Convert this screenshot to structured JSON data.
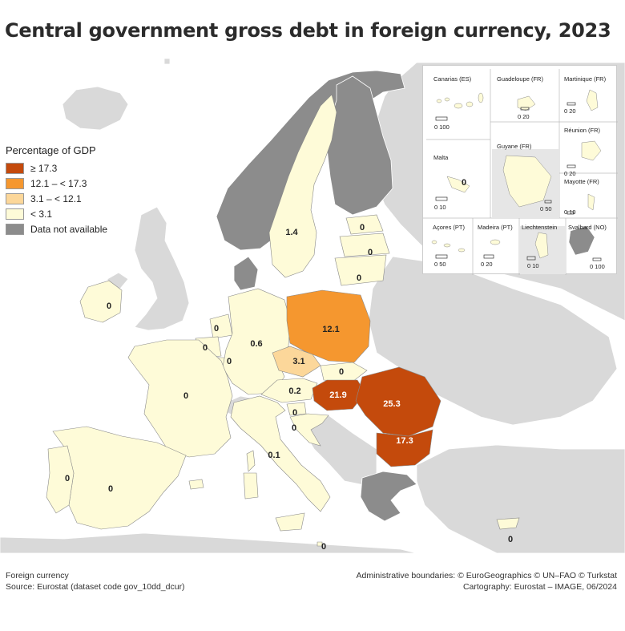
{
  "title": "Central government gross debt in foreign currency, 2023",
  "legend": {
    "title": "Percentage of GDP",
    "items": [
      {
        "label": "≥ 17.3",
        "color": "#c44a0c"
      },
      {
        "label": "12.1 – < 17.3",
        "color": "#f5972f"
      },
      {
        "label": "3.1 – < 12.1",
        "color": "#fcd79a"
      },
      {
        "label": "< 3.1",
        "color": "#fefbd8"
      },
      {
        "label": "Data not available",
        "color": "#8c8c8c"
      }
    ]
  },
  "map_values": {
    "sweden": "1.4",
    "estonia": "0",
    "latvia": "0",
    "lithuania": "0",
    "ireland": "0",
    "netherlands": "0",
    "belgium": "0",
    "luxembourg": "0",
    "germany": "0.6",
    "poland": "12.1",
    "czechia": "3.1",
    "slovakia": "0",
    "austria": "0.2",
    "hungary": "21.9",
    "romania": "25.3",
    "bulgaria": "17.3",
    "slovenia": "0",
    "croatia": "0",
    "france": "0",
    "italy": "0.1",
    "spain": "0",
    "portugal": "0",
    "malta": "0",
    "cyprus": "0"
  },
  "insets": {
    "canarias": {
      "name": "Canarias (ES)",
      "scale": "0   100"
    },
    "guadeloupe": {
      "name": "Guadeloupe (FR)",
      "scale": "0  20"
    },
    "martinique": {
      "name": "Martinique (FR)",
      "scale": "0  20"
    },
    "reunion": {
      "name": "Réunion (FR)",
      "scale": "0  20"
    },
    "malta": {
      "name": "Malta",
      "scale": "0   10",
      "value": "0"
    },
    "guyane": {
      "name": "Guyane (FR)",
      "scale": "0  50"
    },
    "mayotte": {
      "name": "Mayotte (FR)",
      "scale": "0   10"
    },
    "acores": {
      "name": "Açores (PT)",
      "scale": "0   50"
    },
    "madeira": {
      "name": "Madeira (PT)",
      "scale": "0   20"
    },
    "liechtenstein": {
      "name": "Liechtenstein",
      "scale": "0   10"
    },
    "svalbard": {
      "name": "Svalbard (NO)",
      "scale": "0 100"
    }
  },
  "footer": {
    "left1": "Foreign currency",
    "left2": "Source: Eurostat (dataset code gov_10dd_dcur)",
    "right1": "Administrative boundaries: © EuroGeographics © UN–FAO © Turkstat",
    "right2": "Cartography: Eurostat – IMAGE, 06/2024"
  }
}
